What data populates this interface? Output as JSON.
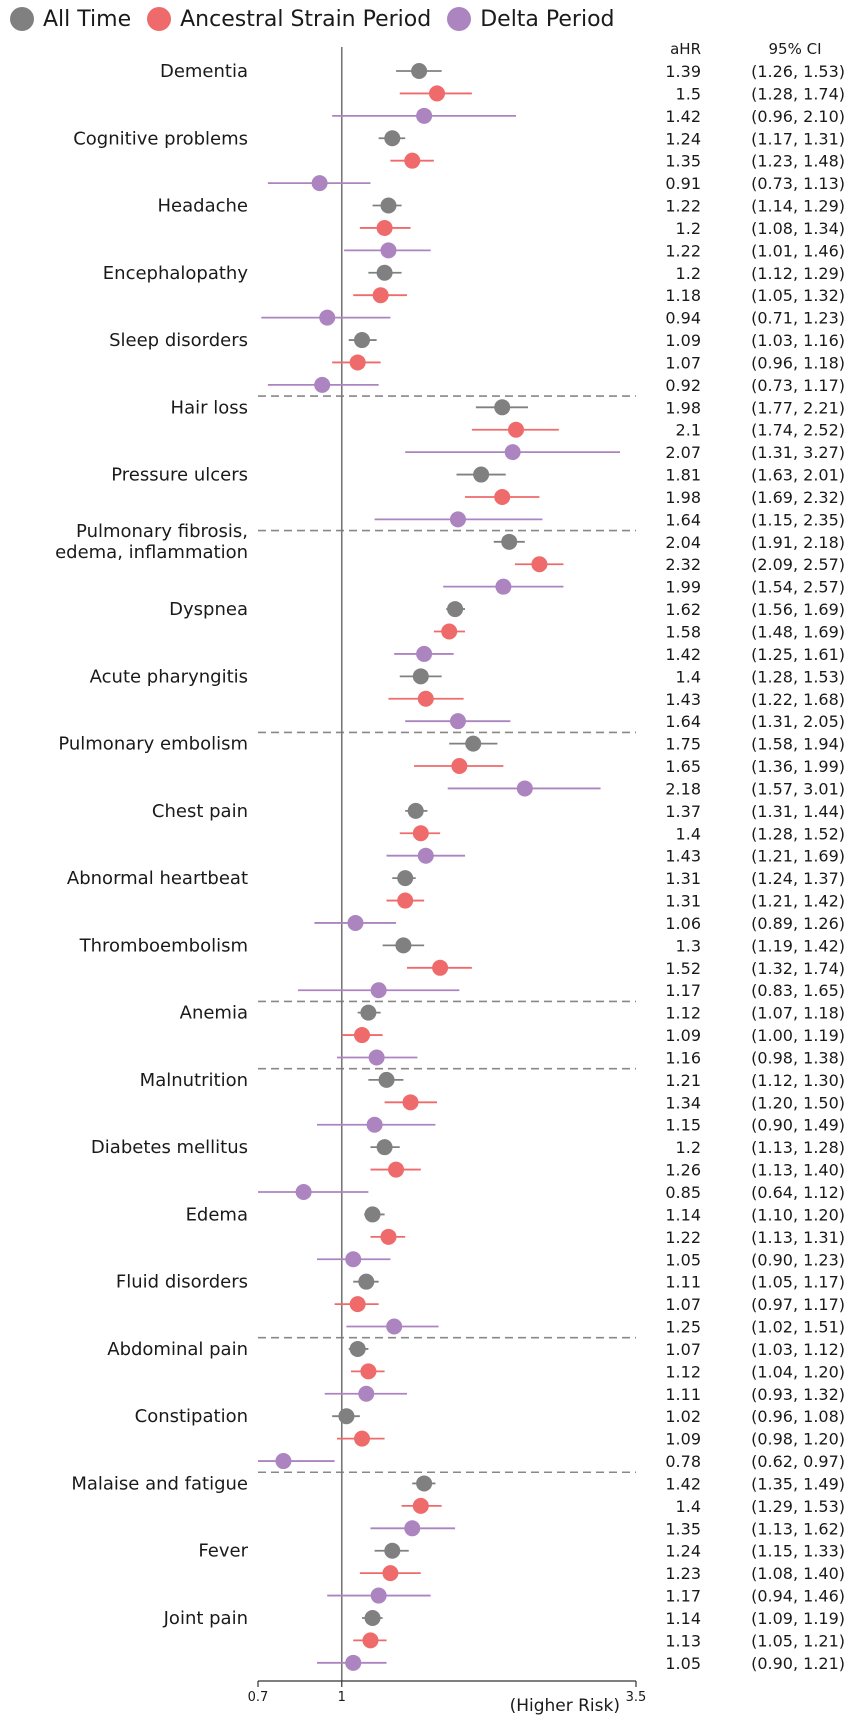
{
  "colors": {
    "all_time": "#808080",
    "ancestral": "#ef6a6a",
    "delta": "#ab84c0",
    "ref_line": "#777777",
    "separator": "#888888"
  },
  "legend": [
    {
      "label": "All Time",
      "color": "#808080"
    },
    {
      "label": "Ancestral Strain Period",
      "color": "#ef6a6a"
    },
    {
      "label": "Delta Period",
      "color": "#ab84c0"
    }
  ],
  "chart_data": {
    "type": "forest",
    "table_headers": {
      "ahr": "aHR",
      "ci": "95% CI"
    },
    "x_scale": "log",
    "xlim": [
      0.7,
      3.5
    ],
    "xticks": [
      0.7,
      1,
      3.5
    ],
    "xlabel": "(Higher Risk)",
    "reference_line": 1,
    "series": [
      {
        "name": "All Time",
        "color": "#808080"
      },
      {
        "name": "Ancestral Strain Period",
        "color": "#ef6a6a"
      },
      {
        "name": "Delta Period",
        "color": "#ab84c0"
      }
    ],
    "groups_separated_after": [
      "Sleep disorders",
      "Pressure ulcers",
      "Acute pharyngitis",
      "Thromboembolism",
      "Anemia",
      "Fluid disorders",
      "Constipation"
    ],
    "outcomes": [
      {
        "label": "Dementia",
        "rows": [
          {
            "series": "All Time",
            "ahr": "1.39",
            "lo": 1.26,
            "hi": 1.53,
            "ci": "(1.26, 1.53)"
          },
          {
            "series": "Ancestral Strain Period",
            "ahr": "1.5",
            "lo": 1.28,
            "hi": 1.74,
            "ci": "(1.28, 1.74)"
          },
          {
            "series": "Delta Period",
            "ahr": "1.42",
            "lo": 0.96,
            "hi": 2.1,
            "ci": "(0.96, 2.10)"
          }
        ]
      },
      {
        "label": "Cognitive problems",
        "rows": [
          {
            "series": "All Time",
            "ahr": "1.24",
            "lo": 1.17,
            "hi": 1.31,
            "ci": "(1.17, 1.31)"
          },
          {
            "series": "Ancestral Strain Period",
            "ahr": "1.35",
            "lo": 1.23,
            "hi": 1.48,
            "ci": "(1.23, 1.48)"
          },
          {
            "series": "Delta Period",
            "ahr": "0.91",
            "lo": 0.73,
            "hi": 1.13,
            "ci": "(0.73, 1.13)"
          }
        ]
      },
      {
        "label": "Headache",
        "rows": [
          {
            "series": "All Time",
            "ahr": "1.22",
            "lo": 1.14,
            "hi": 1.29,
            "ci": "(1.14, 1.29)"
          },
          {
            "series": "Ancestral Strain Period",
            "ahr": "1.2",
            "lo": 1.08,
            "hi": 1.34,
            "ci": "(1.08, 1.34)"
          },
          {
            "series": "Delta Period",
            "ahr": "1.22",
            "lo": 1.01,
            "hi": 1.46,
            "ci": "(1.01, 1.46)"
          }
        ]
      },
      {
        "label": "Encephalopathy",
        "rows": [
          {
            "series": "All Time",
            "ahr": "1.2",
            "lo": 1.12,
            "hi": 1.29,
            "ci": "(1.12, 1.29)"
          },
          {
            "series": "Ancestral Strain Period",
            "ahr": "1.18",
            "lo": 1.05,
            "hi": 1.32,
            "ci": "(1.05, 1.32)"
          },
          {
            "series": "Delta Period",
            "ahr": "0.94",
            "lo": 0.71,
            "hi": 1.23,
            "ci": "(0.71, 1.23)"
          }
        ]
      },
      {
        "label": "Sleep disorders",
        "rows": [
          {
            "series": "All Time",
            "ahr": "1.09",
            "lo": 1.03,
            "hi": 1.16,
            "ci": "(1.03, 1.16)"
          },
          {
            "series": "Ancestral Strain Period",
            "ahr": "1.07",
            "lo": 0.96,
            "hi": 1.18,
            "ci": "(0.96, 1.18)"
          },
          {
            "series": "Delta Period",
            "ahr": "0.92",
            "lo": 0.73,
            "hi": 1.17,
            "ci": "(0.73, 1.17)"
          }
        ]
      },
      {
        "label": "Hair loss",
        "rows": [
          {
            "series": "All Time",
            "ahr": "1.98",
            "lo": 1.77,
            "hi": 2.21,
            "ci": "(1.77, 2.21)"
          },
          {
            "series": "Ancestral Strain Period",
            "ahr": "2.1",
            "lo": 1.74,
            "hi": 2.52,
            "ci": "(1.74, 2.52)"
          },
          {
            "series": "Delta Period",
            "ahr": "2.07",
            "lo": 1.31,
            "hi": 3.27,
            "ci": "(1.31, 3.27)"
          }
        ]
      },
      {
        "label": "Pressure ulcers",
        "rows": [
          {
            "series": "All Time",
            "ahr": "1.81",
            "lo": 1.63,
            "hi": 2.01,
            "ci": "(1.63, 2.01)"
          },
          {
            "series": "Ancestral Strain Period",
            "ahr": "1.98",
            "lo": 1.69,
            "hi": 2.32,
            "ci": "(1.69, 2.32)"
          },
          {
            "series": "Delta Period",
            "ahr": "1.64",
            "lo": 1.15,
            "hi": 2.35,
            "ci": "(1.15, 2.35)"
          }
        ]
      },
      {
        "label": "Pulmonary fibrosis,\nedema, inflammation",
        "rows": [
          {
            "series": "All Time",
            "ahr": "2.04",
            "lo": 1.91,
            "hi": 2.18,
            "ci": "(1.91, 2.18)"
          },
          {
            "series": "Ancestral Strain Period",
            "ahr": "2.32",
            "lo": 2.09,
            "hi": 2.57,
            "ci": "(2.09, 2.57)"
          },
          {
            "series": "Delta Period",
            "ahr": "1.99",
            "lo": 1.54,
            "hi": 2.57,
            "ci": "(1.54, 2.57)"
          }
        ]
      },
      {
        "label": "Dyspnea",
        "rows": [
          {
            "series": "All Time",
            "ahr": "1.62",
            "lo": 1.56,
            "hi": 1.69,
            "ci": "(1.56, 1.69)"
          },
          {
            "series": "Ancestral Strain Period",
            "ahr": "1.58",
            "lo": 1.48,
            "hi": 1.69,
            "ci": "(1.48, 1.69)"
          },
          {
            "series": "Delta Period",
            "ahr": "1.42",
            "lo": 1.25,
            "hi": 1.61,
            "ci": "(1.25, 1.61)"
          }
        ]
      },
      {
        "label": "Acute pharyngitis",
        "rows": [
          {
            "series": "All Time",
            "ahr": "1.4",
            "lo": 1.28,
            "hi": 1.53,
            "ci": "(1.28, 1.53)"
          },
          {
            "series": "Ancestral Strain Period",
            "ahr": "1.43",
            "lo": 1.22,
            "hi": 1.68,
            "ci": "(1.22, 1.68)"
          },
          {
            "series": "Delta Period",
            "ahr": "1.64",
            "lo": 1.31,
            "hi": 2.05,
            "ci": "(1.31, 2.05)"
          }
        ]
      },
      {
        "label": "Pulmonary embolism",
        "rows": [
          {
            "series": "All Time",
            "ahr": "1.75",
            "lo": 1.58,
            "hi": 1.94,
            "ci": "(1.58, 1.94)"
          },
          {
            "series": "Ancestral Strain Period",
            "ahr": "1.65",
            "lo": 1.36,
            "hi": 1.99,
            "ci": "(1.36, 1.99)"
          },
          {
            "series": "Delta Period",
            "ahr": "2.18",
            "lo": 1.57,
            "hi": 3.01,
            "ci": "(1.57, 3.01)"
          }
        ]
      },
      {
        "label": "Chest pain",
        "rows": [
          {
            "series": "All Time",
            "ahr": "1.37",
            "lo": 1.31,
            "hi": 1.44,
            "ci": "(1.31, 1.44)"
          },
          {
            "series": "Ancestral Strain Period",
            "ahr": "1.4",
            "lo": 1.28,
            "hi": 1.52,
            "ci": "(1.28, 1.52)"
          },
          {
            "series": "Delta Period",
            "ahr": "1.43",
            "lo": 1.21,
            "hi": 1.69,
            "ci": "(1.21, 1.69)"
          }
        ]
      },
      {
        "label": "Abnormal heartbeat",
        "rows": [
          {
            "series": "All Time",
            "ahr": "1.31",
            "lo": 1.24,
            "hi": 1.37,
            "ci": "(1.24, 1.37)"
          },
          {
            "series": "Ancestral Strain Period",
            "ahr": "1.31",
            "lo": 1.21,
            "hi": 1.42,
            "ci": "(1.21, 1.42)"
          },
          {
            "series": "Delta Period",
            "ahr": "1.06",
            "lo": 0.89,
            "hi": 1.26,
            "ci": "(0.89, 1.26)"
          }
        ]
      },
      {
        "label": "Thromboembolism",
        "rows": [
          {
            "series": "All Time",
            "ahr": "1.3",
            "lo": 1.19,
            "hi": 1.42,
            "ci": "(1.19, 1.42)"
          },
          {
            "series": "Ancestral Strain Period",
            "ahr": "1.52",
            "lo": 1.32,
            "hi": 1.74,
            "ci": "(1.32, 1.74)"
          },
          {
            "series": "Delta Period",
            "ahr": "1.17",
            "lo": 0.83,
            "hi": 1.65,
            "ci": "(0.83, 1.65)"
          }
        ]
      },
      {
        "label": "Anemia",
        "rows": [
          {
            "series": "All Time",
            "ahr": "1.12",
            "lo": 1.07,
            "hi": 1.18,
            "ci": "(1.07, 1.18)"
          },
          {
            "series": "Ancestral Strain Period",
            "ahr": "1.09",
            "lo": 1.0,
            "hi": 1.19,
            "ci": "(1.00, 1.19)"
          },
          {
            "series": "Delta Period",
            "ahr": "1.16",
            "lo": 0.98,
            "hi": 1.38,
            "ci": "(0.98, 1.38)"
          }
        ]
      },
      {
        "label": "Malnutrition",
        "rows": [
          {
            "series": "All Time",
            "ahr": "1.21",
            "lo": 1.12,
            "hi": 1.3,
            "ci": "(1.12, 1.30)"
          },
          {
            "series": "Ancestral Strain Period",
            "ahr": "1.34",
            "lo": 1.2,
            "hi": 1.5,
            "ci": "(1.20, 1.50)"
          },
          {
            "series": "Delta Period",
            "ahr": "1.15",
            "lo": 0.9,
            "hi": 1.49,
            "ci": "(0.90, 1.49)"
          }
        ]
      },
      {
        "label": "Diabetes mellitus",
        "rows": [
          {
            "series": "All Time",
            "ahr": "1.2",
            "lo": 1.13,
            "hi": 1.28,
            "ci": "(1.13, 1.28)"
          },
          {
            "series": "Ancestral Strain Period",
            "ahr": "1.26",
            "lo": 1.13,
            "hi": 1.4,
            "ci": "(1.13, 1.40)"
          },
          {
            "series": "Delta Period",
            "ahr": "0.85",
            "lo": 0.64,
            "hi": 1.12,
            "ci": "(0.64, 1.12)"
          }
        ]
      },
      {
        "label": "Edema",
        "rows": [
          {
            "series": "All Time",
            "ahr": "1.14",
            "lo": 1.1,
            "hi": 1.2,
            "ci": "(1.10, 1.20)"
          },
          {
            "series": "Ancestral Strain Period",
            "ahr": "1.22",
            "lo": 1.13,
            "hi": 1.31,
            "ci": "(1.13, 1.31)"
          },
          {
            "series": "Delta Period",
            "ahr": "1.05",
            "lo": 0.9,
            "hi": 1.23,
            "ci": "(0.90, 1.23)"
          }
        ]
      },
      {
        "label": "Fluid disorders",
        "rows": [
          {
            "series": "All Time",
            "ahr": "1.11",
            "lo": 1.05,
            "hi": 1.17,
            "ci": "(1.05, 1.17)"
          },
          {
            "series": "Ancestral Strain Period",
            "ahr": "1.07",
            "lo": 0.97,
            "hi": 1.17,
            "ci": "(0.97, 1.17)"
          },
          {
            "series": "Delta Period",
            "ahr": "1.25",
            "lo": 1.02,
            "hi": 1.51,
            "ci": "(1.02, 1.51)"
          }
        ]
      },
      {
        "label": "Abdominal pain",
        "rows": [
          {
            "series": "All Time",
            "ahr": "1.07",
            "lo": 1.03,
            "hi": 1.12,
            "ci": "(1.03, 1.12)"
          },
          {
            "series": "Ancestral Strain Period",
            "ahr": "1.12",
            "lo": 1.04,
            "hi": 1.2,
            "ci": "(1.04, 1.20)"
          },
          {
            "series": "Delta Period",
            "ahr": "1.11",
            "lo": 0.93,
            "hi": 1.32,
            "ci": "(0.93, 1.32)"
          }
        ]
      },
      {
        "label": "Constipation",
        "rows": [
          {
            "series": "All Time",
            "ahr": "1.02",
            "lo": 0.96,
            "hi": 1.08,
            "ci": "(0.96, 1.08)"
          },
          {
            "series": "Ancestral Strain Period",
            "ahr": "1.09",
            "lo": 0.98,
            "hi": 1.2,
            "ci": "(0.98, 1.20)"
          },
          {
            "series": "Delta Period",
            "ahr": "0.78",
            "lo": 0.62,
            "hi": 0.97,
            "ci": "(0.62, 0.97)"
          }
        ]
      },
      {
        "label": "Malaise and fatigue",
        "rows": [
          {
            "series": "All Time",
            "ahr": "1.42",
            "lo": 1.35,
            "hi": 1.49,
            "ci": "(1.35, 1.49)"
          },
          {
            "series": "Ancestral Strain Period",
            "ahr": "1.4",
            "lo": 1.29,
            "hi": 1.53,
            "ci": "(1.29, 1.53)"
          },
          {
            "series": "Delta Period",
            "ahr": "1.35",
            "lo": 1.13,
            "hi": 1.62,
            "ci": "(1.13, 1.62)"
          }
        ]
      },
      {
        "label": "Fever",
        "rows": [
          {
            "series": "All Time",
            "ahr": "1.24",
            "lo": 1.15,
            "hi": 1.33,
            "ci": "(1.15, 1.33)"
          },
          {
            "series": "Ancestral Strain Period",
            "ahr": "1.23",
            "lo": 1.08,
            "hi": 1.4,
            "ci": "(1.08, 1.40)"
          },
          {
            "series": "Delta Period",
            "ahr": "1.17",
            "lo": 0.94,
            "hi": 1.46,
            "ci": "(0.94, 1.46)"
          }
        ]
      },
      {
        "label": "Joint pain",
        "rows": [
          {
            "series": "All Time",
            "ahr": "1.14",
            "lo": 1.09,
            "hi": 1.19,
            "ci": "(1.09, 1.19)"
          },
          {
            "series": "Ancestral Strain Period",
            "ahr": "1.13",
            "lo": 1.05,
            "hi": 1.21,
            "ci": "(1.05, 1.21)"
          },
          {
            "series": "Delta Period",
            "ahr": "1.05",
            "lo": 0.9,
            "hi": 1.21,
            "ci": "(0.90, 1.21)"
          }
        ]
      }
    ]
  }
}
